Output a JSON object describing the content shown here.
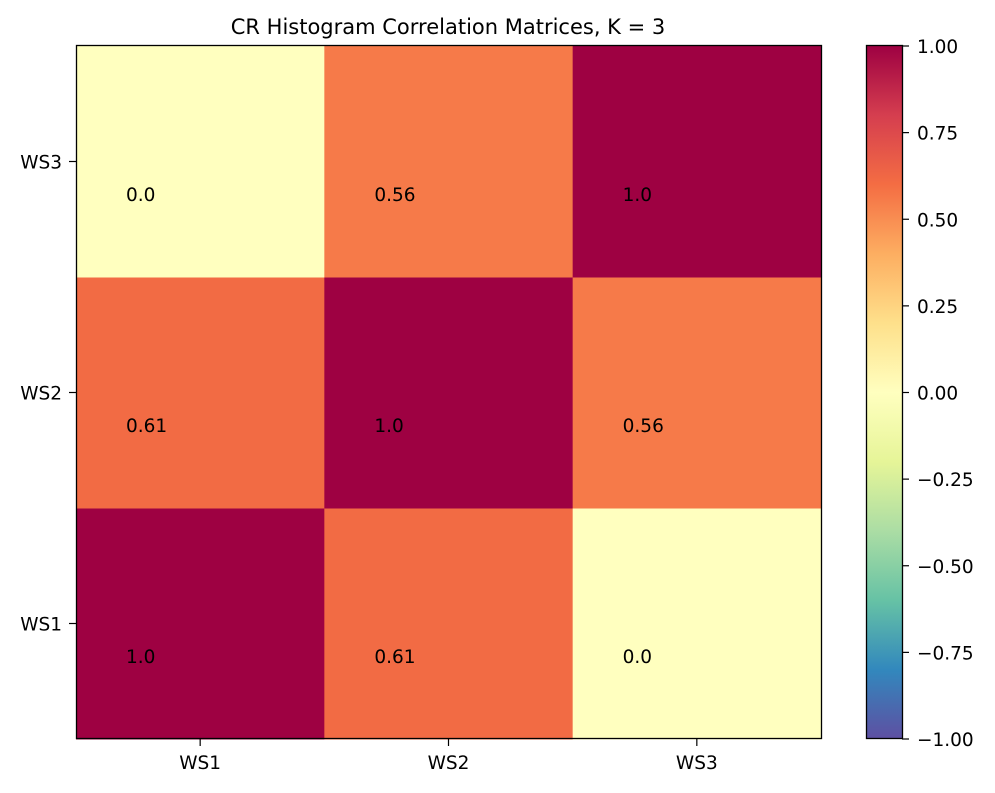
{
  "chart_data": {
    "type": "heatmap",
    "title": "CR Histogram Correlation Matrices, K = 3",
    "xlabel": "",
    "ylabel": "",
    "x_categories": [
      "WS1",
      "WS2",
      "WS3"
    ],
    "y_categories": [
      "WS1",
      "WS2",
      "WS3"
    ],
    "values": [
      [
        1.0,
        0.61,
        0.0
      ],
      [
        0.61,
        1.0,
        0.56
      ],
      [
        0.0,
        0.56,
        1.0
      ]
    ],
    "cell_labels": [
      [
        "1.0",
        "0.61",
        "0.0"
      ],
      [
        "0.61",
        "1.0",
        "0.56"
      ],
      [
        "0.0",
        "0.56",
        "1.0"
      ]
    ],
    "colormap": "Spectral_r",
    "colorbar": {
      "vmin": -1.0,
      "vmax": 1.0,
      "ticks": [
        1.0,
        0.75,
        0.5,
        0.25,
        0.0,
        -0.25,
        -0.5,
        -0.75,
        -1.0
      ],
      "tick_labels": [
        "1.00",
        "0.75",
        "0.50",
        "0.25",
        "0.00",
        "−0.25",
        "−0.50",
        "−0.75",
        "−1.00"
      ]
    },
    "grid": false
  }
}
